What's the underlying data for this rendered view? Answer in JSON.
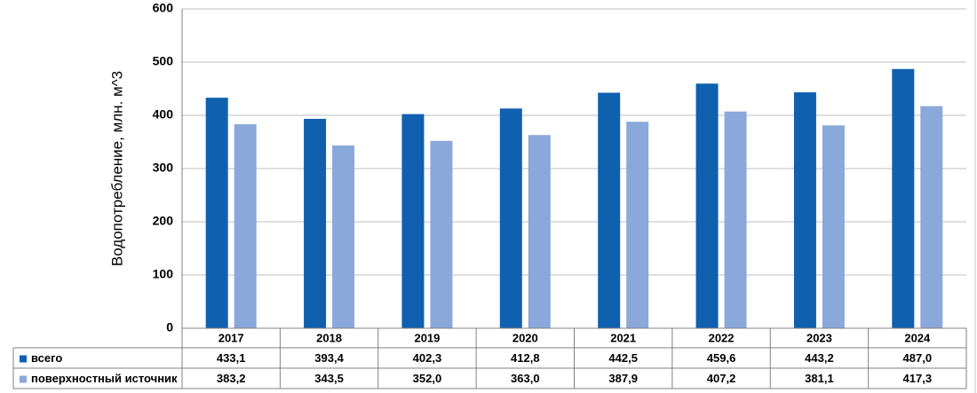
{
  "chart_data": {
    "type": "bar",
    "title": "",
    "xlabel": "",
    "ylabel": "Водопотребление, млн. м^3",
    "ylim": [
      0,
      600
    ],
    "yticks": [
      "0",
      "100",
      "200",
      "300",
      "400",
      "500",
      "600"
    ],
    "ytick_values": [
      0,
      100,
      200,
      300,
      400,
      500,
      600
    ],
    "grid": true,
    "legend": "data-table-left",
    "categories": [
      "2017",
      "2018",
      "2019",
      "2020",
      "2021",
      "2022",
      "2023",
      "2024"
    ],
    "series": [
      {
        "name": "всего",
        "color": "#1060B0",
        "values": [
          433.1,
          393.4,
          402.3,
          412.8,
          442.5,
          459.6,
          443.2,
          487.0
        ],
        "labels": [
          "433,1",
          "393,4",
          "402,3",
          "412,8",
          "442,5",
          "459,6",
          "443,2",
          "487,0"
        ]
      },
      {
        "name": "поверхностный источник",
        "color": "#8AA8DA",
        "values": [
          383.2,
          343.5,
          352.0,
          363.0,
          387.9,
          407.2,
          381.1,
          417.3
        ],
        "labels": [
          "383,2",
          "343,5",
          "352,0",
          "363,0",
          "387,9",
          "407,2",
          "381,1",
          "417,3"
        ]
      }
    ]
  }
}
